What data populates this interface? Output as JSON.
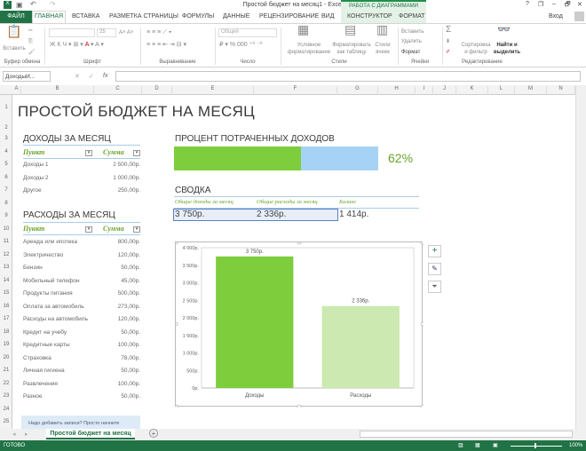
{
  "window": {
    "title": "Простой бюджет на месяц1 - Excel",
    "context_group": "РАБОТА С ДИАГРАММАМИ",
    "controls": [
      "?",
      "❐",
      "–",
      "🗗",
      "✕"
    ],
    "signin": "Вход"
  },
  "tabs": {
    "file": "ФАЙЛ",
    "items": [
      "ГЛАВНАЯ",
      "ВСТАВКА",
      "РАЗМЕТКА СТРАНИЦЫ",
      "ФОРМУЛЫ",
      "ДАННЫЕ",
      "РЕЦЕНЗИРОВАНИЕ",
      "ВИД",
      "КОНСТРУКТОР",
      "ФОРМАТ"
    ]
  },
  "ribbon": {
    "paste": "Вставить",
    "font_size": "25",
    "number_format": "Общий",
    "conditional": "Условное форматирование",
    "format_table": "Форматировать как таблицу",
    "cell_styles": "Стили ячеек",
    "insert": "Вставить",
    "delete": "Удалить",
    "format": "Формат",
    "sort": "Сортировка и фильтр",
    "find": "Найти и выделить",
    "groups": [
      "Буфер обмена",
      "Шрифт",
      "Выравнивание",
      "Число",
      "Стили",
      "Ячейки",
      "Редактирование"
    ]
  },
  "formula_bar": {
    "name_box": "ДоходыИ...",
    "fx": "fx",
    "value": ""
  },
  "columns": [
    "A",
    "B",
    "C",
    "D",
    "E",
    "F",
    "G",
    "H",
    "I",
    "J",
    "K",
    "L",
    "M",
    "N"
  ],
  "rows": [
    "1",
    "2",
    "3",
    "4",
    "5",
    "6",
    "7",
    "8",
    "9",
    "10",
    "11",
    "12",
    "13",
    "14",
    "15",
    "16",
    "17",
    "18",
    "19",
    "20",
    "21",
    "22",
    "23",
    "24",
    "25"
  ],
  "sheet": {
    "title": "ПРОСТОЙ БЮДЖЕТ НА МЕСЯЦ",
    "income": {
      "heading": "ДОХОДЫ ЗА МЕСЯЦ",
      "col1": "Пункт",
      "col2": "Сумма",
      "items": [
        {
          "name": "Доходы 1",
          "value": "2 500,00р."
        },
        {
          "name": "Доходы 2",
          "value": "1 000,00р."
        },
        {
          "name": "Другое",
          "value": "250,00р."
        }
      ]
    },
    "expenses": {
      "heading": "РАСХОДЫ ЗА МЕСЯЦ",
      "col1": "Пункт",
      "col2": "Сумма",
      "items": [
        {
          "name": "Аренда или ипотека",
          "value": "800,00р."
        },
        {
          "name": "Электричество",
          "value": "120,00р."
        },
        {
          "name": "Бензин",
          "value": "50,00р."
        },
        {
          "name": "Мобильный телефон",
          "value": "45,00р."
        },
        {
          "name": "Продукты питания",
          "value": "500,00р."
        },
        {
          "name": "Оплата за автомобиль",
          "value": "273,00р."
        },
        {
          "name": "Расходы на автомобиль",
          "value": "120,00р."
        },
        {
          "name": "Кредит на учебу",
          "value": "50,00р."
        },
        {
          "name": "Кредитные карты",
          "value": "100,00р."
        },
        {
          "name": "Страховка",
          "value": "78,00р."
        },
        {
          "name": "Личная гигиена",
          "value": "50,00р."
        },
        {
          "name": "Развлечения",
          "value": "100,00р."
        },
        {
          "name": "Разное",
          "value": "50,00р."
        }
      ]
    },
    "hint": "Надо добавить записи? Просто начните",
    "percent": {
      "heading": "ПРОЦЕНТ ПОТРАЧЕННЫХ ДОХОДОВ",
      "value": "62%",
      "fraction": 0.62,
      "fill": "#7dcd3c",
      "rest": "#a6d3f5"
    },
    "summary": {
      "heading": "СВОДКА",
      "labels": [
        "Общие доходы за месяц",
        "Общие расходы за месяц",
        "Баланс"
      ],
      "values": [
        "3 750р.",
        "2 336р.",
        "1 414р."
      ]
    }
  },
  "chart_data": {
    "type": "bar",
    "categories": [
      "Доходы",
      "Расходы"
    ],
    "values": [
      3750,
      2336
    ],
    "data_labels": [
      "3 750р.",
      "2 336р."
    ],
    "colors": [
      "#7dcd3c",
      "#cbe9b0"
    ],
    "ylim": [
      0,
      4000
    ],
    "yticks": [
      "0р.",
      "500р.",
      "1 000р.",
      "1 500р.",
      "2 000р.",
      "2 500р.",
      "3 000р.",
      "3 500р.",
      "4 000р."
    ],
    "grid": false,
    "legend": "none"
  },
  "chart_tools": [
    "+",
    "✎",
    "⏷"
  ],
  "sheet_tabs": {
    "active": "Простой бюджет на месяц",
    "add": "+"
  },
  "status": {
    "ready": "ГОТОВО",
    "zoom": "100%"
  }
}
